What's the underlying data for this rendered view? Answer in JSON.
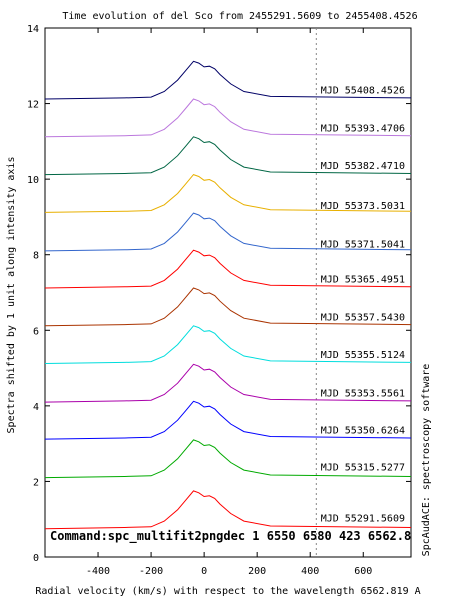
{
  "chart_data": {
    "type": "line",
    "title": "Time evolution of del Sco from 2455291.5609 to 2455408.4526",
    "xlabel": "Radial velocity (km/s) with respect to the wavelength 6562.819 A",
    "ylabel": "Spectra shifted by 1 unit along intensity axis",
    "side_label": "SpcAudACE: spectroscopy software",
    "command": "Command:spc_multifit2pngdec 1 6550 6580 423 6562.8",
    "xlim": [
      -600,
      780
    ],
    "ylim": [
      0,
      14
    ],
    "x_ticks": [
      -400,
      -200,
      0,
      200,
      400,
      600
    ],
    "x_tick_labels": [
      "-400",
      "-200",
      "0",
      "200",
      "400",
      "600"
    ],
    "y_ticks": [
      0,
      2,
      4,
      6,
      8,
      10,
      12,
      14
    ],
    "y_tick_labels": [
      "0",
      "2",
      "4",
      "6",
      "8",
      "10",
      "12",
      "14"
    ],
    "reference_line_x": 423,
    "grid": false,
    "legend": "right, one label per spectrum",
    "series": [
      {
        "name": "MJD 55291.5609",
        "color": "#ff0000",
        "offset": 0.0,
        "peak": 1.05,
        "shape": [
          [
            -600,
            0.75
          ],
          [
            -300,
            0.78
          ],
          [
            -200,
            0.8
          ],
          [
            -150,
            0.95
          ],
          [
            -100,
            1.25
          ],
          [
            -70,
            1.5
          ],
          [
            -40,
            1.75
          ],
          [
            -20,
            1.7
          ],
          [
            0,
            1.6
          ],
          [
            20,
            1.62
          ],
          [
            40,
            1.55
          ],
          [
            60,
            1.4
          ],
          [
            100,
            1.15
          ],
          [
            150,
            0.95
          ],
          [
            250,
            0.82
          ],
          [
            780,
            0.78
          ]
        ]
      },
      {
        "name": "MJD 55315.5277",
        "color": "#00aa00",
        "offset": 1.35,
        "peak": 1.05,
        "shape": [
          [
            -600,
            0.75
          ],
          [
            -300,
            0.78
          ],
          [
            -200,
            0.8
          ],
          [
            -150,
            0.95
          ],
          [
            -100,
            1.25
          ],
          [
            -70,
            1.5
          ],
          [
            -40,
            1.75
          ],
          [
            -20,
            1.7
          ],
          [
            0,
            1.6
          ],
          [
            20,
            1.62
          ],
          [
            40,
            1.55
          ],
          [
            60,
            1.4
          ],
          [
            100,
            1.15
          ],
          [
            150,
            0.95
          ],
          [
            250,
            0.82
          ],
          [
            780,
            0.78
          ]
        ]
      },
      {
        "name": "MJD 55350.6264",
        "color": "#0000ff",
        "offset": 2.37,
        "peak": 1.0,
        "shape": [
          [
            -600,
            0.75
          ],
          [
            -300,
            0.78
          ],
          [
            -200,
            0.8
          ],
          [
            -150,
            0.95
          ],
          [
            -100,
            1.25
          ],
          [
            -70,
            1.5
          ],
          [
            -40,
            1.75
          ],
          [
            -20,
            1.7
          ],
          [
            0,
            1.6
          ],
          [
            20,
            1.62
          ],
          [
            40,
            1.55
          ],
          [
            60,
            1.4
          ],
          [
            100,
            1.15
          ],
          [
            150,
            0.95
          ],
          [
            250,
            0.82
          ],
          [
            780,
            0.78
          ]
        ]
      },
      {
        "name": "MJD 55353.5561",
        "color": "#aa00aa",
        "offset": 3.35,
        "peak": 1.0,
        "shape": [
          [
            -600,
            0.75
          ],
          [
            -300,
            0.78
          ],
          [
            -200,
            0.8
          ],
          [
            -150,
            0.95
          ],
          [
            -100,
            1.25
          ],
          [
            -70,
            1.5
          ],
          [
            -40,
            1.75
          ],
          [
            -20,
            1.7
          ],
          [
            0,
            1.6
          ],
          [
            20,
            1.62
          ],
          [
            40,
            1.55
          ],
          [
            60,
            1.4
          ],
          [
            100,
            1.15
          ],
          [
            150,
            0.95
          ],
          [
            250,
            0.82
          ],
          [
            780,
            0.78
          ]
        ]
      },
      {
        "name": "MJD 55355.5124",
        "color": "#00dddd",
        "offset": 4.37,
        "peak": 1.0,
        "shape": [
          [
            -600,
            0.75
          ],
          [
            -300,
            0.78
          ],
          [
            -200,
            0.8
          ],
          [
            -150,
            0.95
          ],
          [
            -100,
            1.25
          ],
          [
            -70,
            1.5
          ],
          [
            -40,
            1.75
          ],
          [
            -20,
            1.7
          ],
          [
            0,
            1.6
          ],
          [
            20,
            1.62
          ],
          [
            40,
            1.55
          ],
          [
            60,
            1.4
          ],
          [
            100,
            1.15
          ],
          [
            150,
            0.95
          ],
          [
            250,
            0.82
          ],
          [
            780,
            0.78
          ]
        ]
      },
      {
        "name": "MJD 55357.5430",
        "color": "#aa3300",
        "offset": 5.37,
        "peak": 1.0,
        "shape": [
          [
            -600,
            0.75
          ],
          [
            -300,
            0.78
          ],
          [
            -200,
            0.8
          ],
          [
            -150,
            0.95
          ],
          [
            -100,
            1.25
          ],
          [
            -70,
            1.5
          ],
          [
            -40,
            1.75
          ],
          [
            -20,
            1.7
          ],
          [
            0,
            1.6
          ],
          [
            20,
            1.62
          ],
          [
            40,
            1.55
          ],
          [
            60,
            1.4
          ],
          [
            100,
            1.15
          ],
          [
            150,
            0.95
          ],
          [
            250,
            0.82
          ],
          [
            780,
            0.78
          ]
        ]
      },
      {
        "name": "MJD 55365.4951",
        "color": "#ff0000",
        "offset": 6.37,
        "peak": 1.0,
        "shape": [
          [
            -600,
            0.75
          ],
          [
            -300,
            0.78
          ],
          [
            -200,
            0.8
          ],
          [
            -150,
            0.95
          ],
          [
            -100,
            1.25
          ],
          [
            -70,
            1.5
          ],
          [
            -40,
            1.75
          ],
          [
            -20,
            1.7
          ],
          [
            0,
            1.6
          ],
          [
            20,
            1.62
          ],
          [
            40,
            1.55
          ],
          [
            60,
            1.4
          ],
          [
            100,
            1.15
          ],
          [
            150,
            0.95
          ],
          [
            250,
            0.82
          ],
          [
            780,
            0.78
          ]
        ]
      },
      {
        "name": "MJD 55371.5041",
        "color": "#3366cc",
        "offset": 7.35,
        "peak": 0.95,
        "shape": [
          [
            -600,
            0.75
          ],
          [
            -300,
            0.78
          ],
          [
            -200,
            0.8
          ],
          [
            -150,
            0.95
          ],
          [
            -100,
            1.25
          ],
          [
            -70,
            1.5
          ],
          [
            -40,
            1.75
          ],
          [
            -20,
            1.7
          ],
          [
            0,
            1.6
          ],
          [
            20,
            1.62
          ],
          [
            40,
            1.55
          ],
          [
            60,
            1.4
          ],
          [
            100,
            1.15
          ],
          [
            150,
            0.95
          ],
          [
            250,
            0.82
          ],
          [
            780,
            0.78
          ]
        ]
      },
      {
        "name": "MJD 55373.5031",
        "color": "#e8b000",
        "offset": 8.37,
        "peak": 0.95,
        "shape": [
          [
            -600,
            0.75
          ],
          [
            -300,
            0.78
          ],
          [
            -200,
            0.8
          ],
          [
            -150,
            0.95
          ],
          [
            -100,
            1.25
          ],
          [
            -70,
            1.5
          ],
          [
            -40,
            1.75
          ],
          [
            -20,
            1.7
          ],
          [
            0,
            1.6
          ],
          [
            20,
            1.62
          ],
          [
            40,
            1.55
          ],
          [
            60,
            1.4
          ],
          [
            100,
            1.15
          ],
          [
            150,
            0.95
          ],
          [
            250,
            0.82
          ],
          [
            780,
            0.78
          ]
        ]
      },
      {
        "name": "MJD 55382.4710",
        "color": "#006644",
        "offset": 9.37,
        "peak": 1.0,
        "shape": [
          [
            -600,
            0.75
          ],
          [
            -300,
            0.78
          ],
          [
            -200,
            0.8
          ],
          [
            -150,
            0.95
          ],
          [
            -100,
            1.25
          ],
          [
            -70,
            1.5
          ],
          [
            -40,
            1.75
          ],
          [
            -20,
            1.7
          ],
          [
            0,
            1.6
          ],
          [
            20,
            1.62
          ],
          [
            40,
            1.55
          ],
          [
            60,
            1.4
          ],
          [
            100,
            1.15
          ],
          [
            150,
            0.95
          ],
          [
            250,
            0.82
          ],
          [
            780,
            0.78
          ]
        ]
      },
      {
        "name": "MJD 55393.4706",
        "color": "#bb77dd",
        "offset": 10.37,
        "peak": 1.0,
        "shape": [
          [
            -600,
            0.75
          ],
          [
            -300,
            0.78
          ],
          [
            -200,
            0.8
          ],
          [
            -150,
            0.95
          ],
          [
            -100,
            1.25
          ],
          [
            -70,
            1.5
          ],
          [
            -40,
            1.75
          ],
          [
            -20,
            1.7
          ],
          [
            0,
            1.6
          ],
          [
            20,
            1.62
          ],
          [
            40,
            1.55
          ],
          [
            60,
            1.4
          ],
          [
            100,
            1.15
          ],
          [
            150,
            0.95
          ],
          [
            250,
            0.82
          ],
          [
            780,
            0.78
          ]
        ]
      },
      {
        "name": "MJD 55408.4526",
        "color": "#000066",
        "offset": 11.37,
        "peak": 1.0,
        "shape": [
          [
            -600,
            0.75
          ],
          [
            -300,
            0.78
          ],
          [
            -200,
            0.8
          ],
          [
            -150,
            0.95
          ],
          [
            -100,
            1.25
          ],
          [
            -70,
            1.5
          ],
          [
            -40,
            1.75
          ],
          [
            -20,
            1.7
          ],
          [
            0,
            1.6
          ],
          [
            20,
            1.62
          ],
          [
            40,
            1.55
          ],
          [
            60,
            1.4
          ],
          [
            100,
            1.15
          ],
          [
            150,
            0.95
          ],
          [
            250,
            0.82
          ],
          [
            780,
            0.78
          ]
        ]
      }
    ]
  }
}
